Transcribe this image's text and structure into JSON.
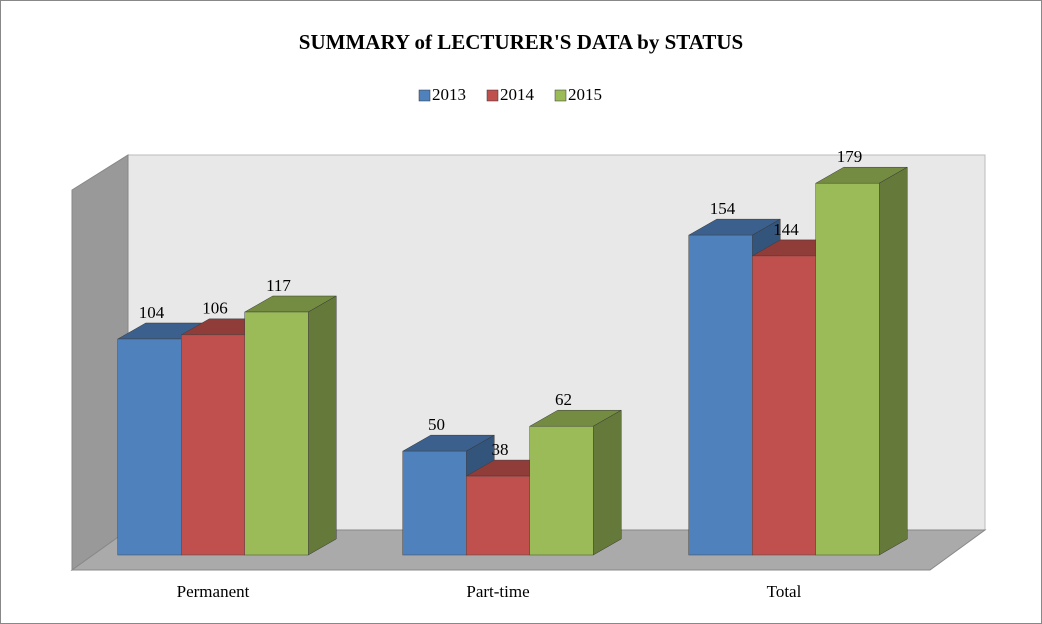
{
  "chart_data": {
    "type": "bar3d",
    "title": "SUMMARY of LECTURER'S DATA by STATUS",
    "categories": [
      "Permanent",
      "Part-time",
      "Total"
    ],
    "series": [
      {
        "name": "2013",
        "color": "#4f81bd",
        "values": [
          104,
          50,
          154
        ]
      },
      {
        "name": "2014",
        "color": "#c0504d",
        "values": [
          106,
          38,
          144
        ]
      },
      {
        "name": "2015",
        "color": "#9bbb59",
        "values": [
          117,
          62,
          179
        ]
      }
    ],
    "ylim": [
      0,
      200
    ],
    "legend": "top"
  }
}
